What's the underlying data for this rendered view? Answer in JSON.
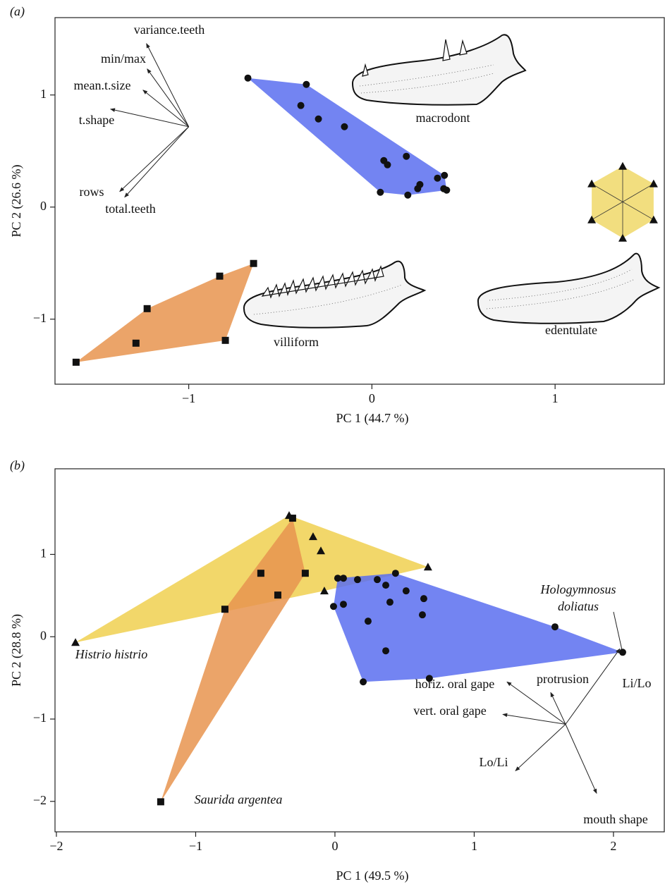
{
  "chart_data": [
    {
      "type": "scatter",
      "panel_label": "(a)",
      "x_label": "PC 1 (44.7 %)",
      "y_label": "PC 2 (26.6 %)",
      "xlim": [
        -1.73,
        1.6
      ],
      "ylim": [
        -1.58,
        1.69
      ],
      "xticks": [
        {
          "value": -1,
          "label": "−1"
        },
        0,
        1
      ],
      "yticks": [
        {
          "value": -1,
          "label": "−1"
        },
        0,
        1
      ],
      "series": [
        {
          "color": "#5b6ef0",
          "marker": "circle",
          "x": [
            -0.677,
            -0.358,
            -0.388,
            -0.292,
            -0.15,
            0.065,
            0.085,
            0.188,
            0.358,
            0.396,
            0.262,
            0.25,
            0.046,
            0.196,
            0.392,
            0.408
          ],
          "y": [
            1.151,
            1.094,
            0.906,
            0.786,
            0.717,
            0.415,
            0.377,
            0.453,
            0.258,
            0.283,
            0.201,
            0.164,
            0.132,
            0.107,
            0.164,
            0.151
          ]
        },
        {
          "color": "#e8944f",
          "marker": "square",
          "x": [
            -0.646,
            -0.831,
            -1.227,
            -0.8,
            -1.288,
            -1.615
          ],
          "y": [
            -0.503,
            -0.616,
            -0.906,
            -1.189,
            -1.214,
            -1.384
          ]
        },
        {
          "color": "#f0d868",
          "marker": "triangle",
          "x": [
            1.369,
            1.538,
            1.538,
            1.369,
            1.2,
            1.2
          ],
          "y": [
            0.365,
            0.208,
            -0.113,
            -0.277,
            -0.113,
            0.208
          ]
        }
      ],
      "loadings": {
        "origin": [
          -1.0,
          0.717
        ],
        "names": [
          "variance.teeth",
          "min/max",
          "mean.t.size",
          "t.shape",
          "rows",
          "total.teeth"
        ],
        "x": [
          -1.231,
          -1.227,
          -1.25,
          -1.427,
          -1.377,
          -1.35
        ],
        "y": [
          1.459,
          1.233,
          1.044,
          0.874,
          0.138,
          0.088
        ]
      },
      "annotations": [
        "macrodont",
        "villiform",
        "edentulate"
      ]
    },
    {
      "type": "scatter",
      "panel_label": "(b)",
      "x_label": "PC 1 (49.5 %)",
      "y_label": "PC 2 (28.8 %)",
      "xlim": [
        -2.01,
        2.37
      ],
      "ylim": [
        -2.37,
        2.04
      ],
      "xticks": [
        {
          "value": -2,
          "label": "−2"
        },
        {
          "value": -1,
          "label": "−1"
        },
        0,
        1,
        2
      ],
      "yticks": [
        {
          "value": -2,
          "label": "−2"
        },
        {
          "value": -1,
          "label": "−1"
        },
        0,
        1
      ],
      "series": [
        {
          "color": "#f0d050",
          "marker": "triangle",
          "x": [
            -0.329,
            -0.157,
            -0.101,
            -0.076,
            0.668,
            -1.863
          ],
          "y": [
            1.474,
            1.217,
            1.045,
            0.557,
            0.848,
            -0.069
          ]
        },
        {
          "color": "#e8944f",
          "marker": "square",
          "x": [
            -0.304,
            -0.532,
            -0.213,
            -0.41,
            -0.79,
            -1.251
          ],
          "y": [
            1.44,
            0.771,
            0.771,
            0.506,
            0.334,
            -2.005
          ]
        },
        {
          "color": "#5b6ef0",
          "marker": "circle",
          "x": [
            0.02,
            0.061,
            0.162,
            0.304,
            0.365,
            0.435,
            0.511,
            0.395,
            0.638,
            0.628,
            -0.01,
            0.061,
            0.238,
            0.365,
            1.58,
            2.066,
            0.203,
            0.678
          ],
          "y": [
            0.711,
            0.711,
            0.694,
            0.694,
            0.626,
            0.771,
            0.557,
            0.42,
            0.463,
            0.266,
            0.368,
            0.394,
            0.189,
            -0.171,
            0.12,
            -0.189,
            -0.548,
            -0.506
          ]
        }
      ],
      "loadings": {
        "origin": [
          1.656,
          -1.063
        ],
        "names": [
          "horiz. oral gape",
          "protrusion",
          "Li/Lo",
          "vert. oral gape",
          "Lo/Li",
          "mouth shape"
        ],
        "x": [
          1.235,
          1.549,
          2.046,
          1.205,
          1.296,
          1.879
        ],
        "y": [
          -0.548,
          -0.677,
          -0.146,
          -0.943,
          -1.629,
          -1.903
        ]
      },
      "annotations": [
        "Histrio histrio",
        "Saurida argentea",
        "Hologymnosus",
        "doliatus"
      ]
    }
  ]
}
